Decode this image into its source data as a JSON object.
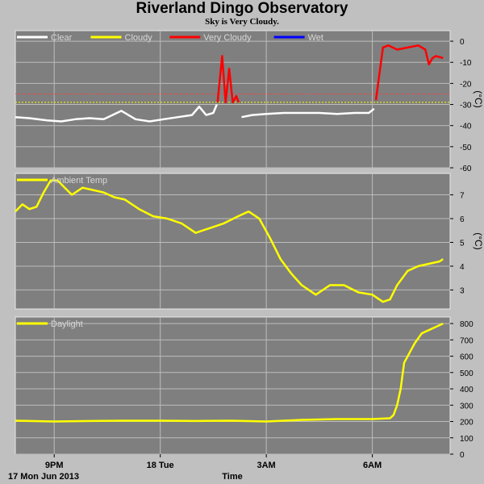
{
  "title": "Riverland Dingo Observatory",
  "subtitle": "Sky is Very Cloudy.",
  "x_axis": {
    "label": "Time",
    "date_label": "17 Mon Jun 2013",
    "ticks": [
      {
        "label": "9PM",
        "h": 21
      },
      {
        "label": "18 Tue",
        "h": 24
      },
      {
        "label": "3AM",
        "h": 27
      },
      {
        "label": "6AM",
        "h": 30
      }
    ]
  },
  "chart_data": [
    {
      "type": "line",
      "x_unit": "hours from midnight 17 Jun 2013",
      "xlim": [
        19.9,
        32.2
      ],
      "ylim": [
        -60,
        5
      ],
      "yticks": [
        0,
        -10,
        -20,
        -30,
        -40,
        -50,
        -60
      ],
      "ylabel": "(°C)",
      "legend_placement": "top-left",
      "legend": [
        {
          "name": "Clear",
          "color": "#ffffff"
        },
        {
          "name": "Cloudy",
          "color": "#ffff00"
        },
        {
          "name": "Very Cloudy",
          "color": "#ff0000"
        },
        {
          "name": "Wet",
          "color": "#0000ff"
        }
      ],
      "thresholds": [
        {
          "value": -25,
          "color": "#ff4040"
        },
        {
          "value": -29,
          "color": "#ffff00"
        }
      ],
      "series": [
        {
          "name": "Clear",
          "color": "#ffffff",
          "x": [
            19.9,
            20.3,
            20.8,
            21.2,
            21.6,
            22.0,
            22.4,
            22.9,
            23.3,
            23.7,
            24.1,
            24.5,
            24.9,
            25.1,
            25.3,
            25.5,
            25.6
          ],
          "y": [
            -36,
            -36.5,
            -37.5,
            -38,
            -37,
            -36.5,
            -37,
            -33,
            -37,
            -38,
            -37,
            -36,
            -35,
            -31,
            -35,
            -34,
            -30
          ]
        },
        {
          "name": "Very Cloudy",
          "color": "#ff0000",
          "x": [
            25.62,
            25.75,
            25.85,
            25.95,
            26.05,
            26.15,
            26.22
          ],
          "y": [
            -29,
            -7,
            -29,
            -13,
            -29,
            -26,
            -29
          ]
        },
        {
          "name": "Clear",
          "color": "#ffffff",
          "x": [
            26.3,
            26.6,
            27.0,
            27.5,
            28.0,
            28.5,
            29.0,
            29.5,
            29.9,
            30.05
          ],
          "y": [
            -36,
            -35,
            -34.5,
            -34,
            -34,
            -34,
            -34.5,
            -34,
            -34,
            -32
          ]
        },
        {
          "name": "Very Cloudy",
          "color": "#ff0000",
          "x": [
            30.1,
            30.3,
            30.45,
            30.7,
            31.0,
            31.3,
            31.5,
            31.6,
            31.7,
            31.8,
            32.0
          ],
          "y": [
            -28,
            -3,
            -2,
            -4,
            -3,
            -2,
            -4,
            -11,
            -8,
            -7,
            -8
          ]
        }
      ]
    },
    {
      "type": "line",
      "x_unit": "hours from midnight 17 Jun 2013",
      "xlim": [
        19.9,
        32.2
      ],
      "ylim": [
        2.2,
        7.9
      ],
      "yticks": [
        3,
        4,
        5,
        6,
        7
      ],
      "ylabel": "(°C)",
      "legend_placement": "top-left",
      "legend": [
        {
          "name": "Ambient Temp",
          "color": "#ffff00"
        }
      ],
      "series": [
        {
          "name": "Ambient Temp",
          "color": "#ffff00",
          "x": [
            19.9,
            20.1,
            20.3,
            20.5,
            20.7,
            20.9,
            21.1,
            21.3,
            21.5,
            21.8,
            22.1,
            22.4,
            22.7,
            23.0,
            23.4,
            23.8,
            24.2,
            24.6,
            25.0,
            25.4,
            25.8,
            26.2,
            26.5,
            26.8,
            27.1,
            27.4,
            27.7,
            28.0,
            28.4,
            28.8,
            29.2,
            29.6,
            30.0,
            30.3,
            30.5,
            30.7,
            31.0,
            31.3,
            31.6,
            31.9,
            32.0
          ],
          "y": [
            6.3,
            6.6,
            6.4,
            6.5,
            7.1,
            7.6,
            7.6,
            7.3,
            7.0,
            7.3,
            7.2,
            7.1,
            6.9,
            6.8,
            6.4,
            6.1,
            6.0,
            5.8,
            5.4,
            5.6,
            5.8,
            6.1,
            6.3,
            6.0,
            5.2,
            4.3,
            3.7,
            3.2,
            2.8,
            3.2,
            3.2,
            2.9,
            2.8,
            2.5,
            2.6,
            3.2,
            3.8,
            4.0,
            4.1,
            4.2,
            4.3
          ]
        }
      ]
    },
    {
      "type": "line",
      "x_unit": "hours from midnight 17 Jun 2013",
      "xlim": [
        19.9,
        32.2
      ],
      "ylim": [
        0,
        840
      ],
      "yticks": [
        0,
        100,
        200,
        300,
        400,
        500,
        600,
        700,
        800
      ],
      "legend_placement": "top-left",
      "legend": [
        {
          "name": "Daylight",
          "color": "#ffff00"
        }
      ],
      "series": [
        {
          "name": "Daylight",
          "color": "#ffff00",
          "x": [
            19.9,
            21.0,
            22.0,
            23.0,
            24.0,
            25.0,
            26.0,
            27.0,
            28.0,
            29.0,
            30.0,
            30.5,
            30.6,
            30.7,
            30.8,
            30.9,
            31.0,
            31.2,
            31.4,
            31.6,
            31.8,
            32.0
          ],
          "y": [
            205,
            200,
            203,
            205,
            205,
            203,
            205,
            200,
            210,
            215,
            215,
            220,
            240,
            300,
            400,
            560,
            600,
            680,
            740,
            760,
            780,
            800
          ]
        }
      ]
    }
  ]
}
